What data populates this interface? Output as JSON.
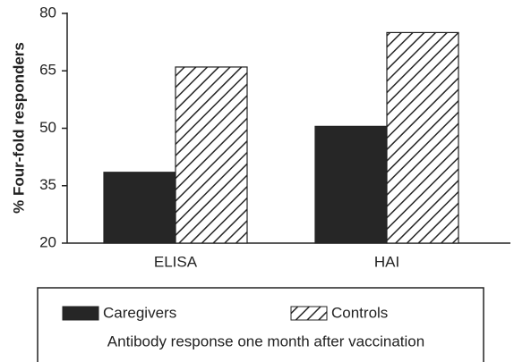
{
  "chart_data": {
    "type": "bar",
    "ylabel": "% Four-fold responders",
    "categories": [
      "ELISA",
      "HAI"
    ],
    "series": [
      {
        "name": "Caregivers",
        "color": "#262626",
        "fill": "solid",
        "values": [
          38.5,
          50.5
        ]
      },
      {
        "name": "Controls",
        "color": "#262626",
        "fill": "hatch",
        "values": [
          66,
          75
        ]
      }
    ],
    "ylim": [
      20,
      80
    ],
    "yticks": [
      20,
      35,
      50,
      65,
      80
    ],
    "caption": "Antibody response one month after vaccination"
  }
}
